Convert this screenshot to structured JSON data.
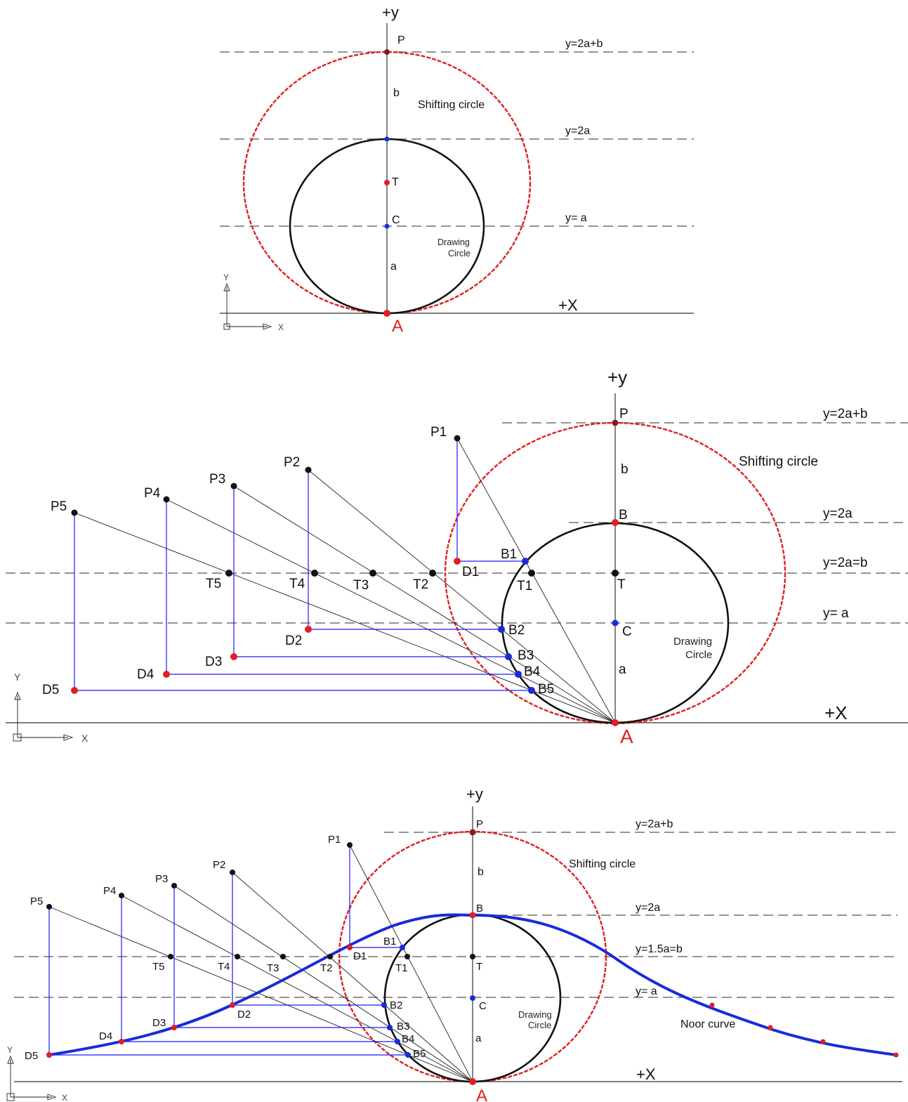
{
  "colors": {
    "shifting_circle": "#e02020",
    "drawing_circle": "#111111",
    "construction_blue": "#1a1aff",
    "noor_curve": "#1a2bd8",
    "point_red": "#e02020",
    "point_blue": "#1a2bd8",
    "point_black": "#111111"
  },
  "ucs": {
    "y_label": "Y",
    "x_label": "X"
  },
  "panel1": {
    "axis_y_label": "+y",
    "axis_x_label": "+X",
    "origin_label": "A",
    "lines": {
      "top": "y=2a+b",
      "mid": "y=2a",
      "low": "y= a"
    },
    "points": {
      "p": "P",
      "t": "T",
      "c": "C"
    },
    "segments": {
      "b": "b",
      "a": "a"
    },
    "shifting_label": "Shifting circle",
    "drawing_label": [
      "Drawing",
      "Circle"
    ]
  },
  "panel2": {
    "axis_y_label": "+y",
    "axis_x_label": "+X",
    "origin_label": "A",
    "lines": {
      "top": "y=2a+b",
      "mid": "y=2a",
      "t": "y=2a=b",
      "low": "y= a"
    },
    "points": {
      "p": "P",
      "b": "B",
      "t": "T",
      "c": "C"
    },
    "segments": {
      "b": "b",
      "a": "a"
    },
    "shifting_label": "Shifting circle",
    "drawing_label": [
      "Drawing",
      "Circle"
    ],
    "P": [
      "P1",
      "P2",
      "P3",
      "P4",
      "P5"
    ],
    "T": [
      "T1",
      "T2",
      "T3",
      "T4",
      "T5"
    ],
    "B": [
      "B1",
      "B2",
      "B3",
      "B4",
      "B5"
    ],
    "D": [
      "D1",
      "D2",
      "D3",
      "D4",
      "D5"
    ]
  },
  "panel3": {
    "axis_y_label": "+y",
    "axis_x_label": "+X",
    "origin_label": "A",
    "lines": {
      "top": "y=2a+b",
      "mid": "y=2a",
      "t": "y=1.5a=b",
      "low": "y= a"
    },
    "points": {
      "p": "P",
      "b": "B",
      "t": "T",
      "c": "C"
    },
    "segments": {
      "b": "b",
      "a": "a"
    },
    "shifting_label": "Shifting circle",
    "drawing_label": [
      "Drawing",
      "Circle"
    ],
    "curve_label": "Noor curve",
    "P": [
      "P1",
      "P2",
      "P3",
      "P4",
      "P5"
    ],
    "T": [
      "T1",
      "T2",
      "T3",
      "T4",
      "T5"
    ],
    "B": [
      "B1",
      "B2",
      "B3",
      "B4",
      "B5"
    ],
    "D": [
      "D1",
      "D2",
      "D3",
      "D4",
      "D5"
    ]
  }
}
